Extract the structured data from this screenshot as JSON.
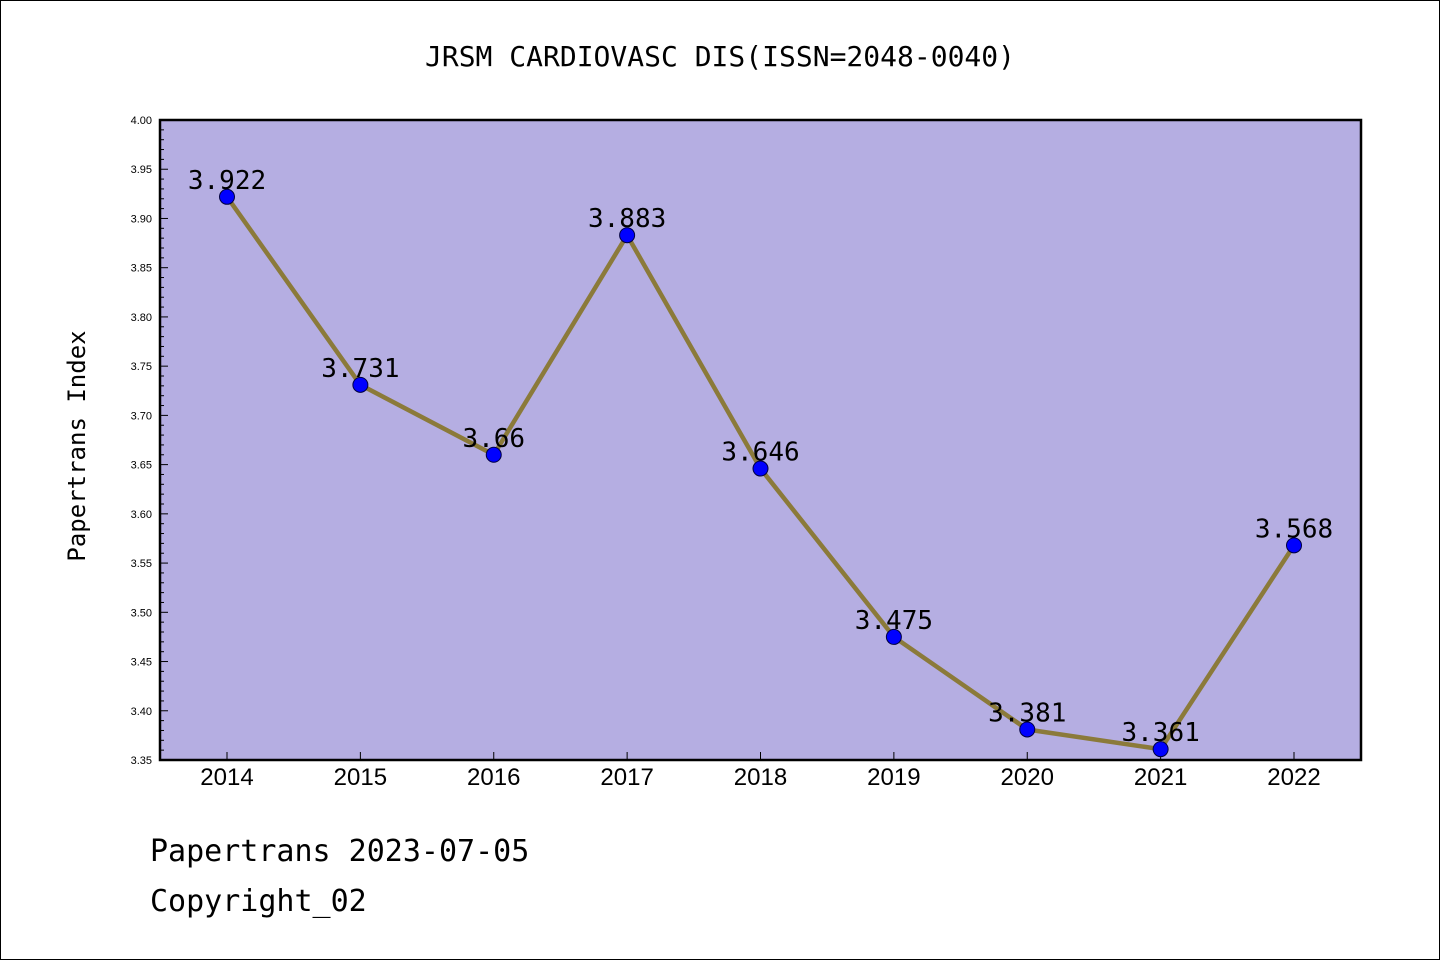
{
  "colors": {
    "plot_bg": "#b5aee2",
    "line": "#8b7a3a",
    "marker": "#0000ff"
  },
  "footer": {
    "line1": "Papertrans 2023-07-05",
    "line2": "Copyright_02"
  },
  "chart_data": {
    "type": "line",
    "title": "JRSM CARDIOVASC DIS(ISSN=2048-0040)",
    "ylabel": "Papertrans Index",
    "xlabel": "",
    "categories": [
      "2014",
      "2015",
      "2016",
      "2017",
      "2018",
      "2019",
      "2020",
      "2021",
      "2022"
    ],
    "values": [
      3.922,
      3.731,
      3.66,
      3.883,
      3.646,
      3.475,
      3.381,
      3.361,
      3.568
    ],
    "labels": [
      "3.922",
      "3.731",
      "3.66",
      "3.883",
      "3.646",
      "3.475",
      "3.381",
      "3.361",
      "3.568"
    ],
    "ylim": [
      3.35,
      4.0
    ],
    "yticks": [
      "3.35",
      "3.40",
      "3.45",
      "3.50",
      "3.55",
      "3.60",
      "3.65",
      "3.70",
      "3.75",
      "3.80",
      "3.85",
      "3.90",
      "3.95",
      "4.00"
    ],
    "grid": false,
    "legend": "none"
  }
}
